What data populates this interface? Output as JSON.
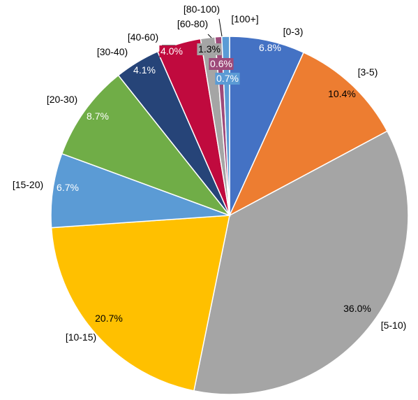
{
  "chart_data": {
    "type": "pie",
    "title": "",
    "legend": "none",
    "categories": [
      "[0-3)",
      "[3-5)",
      "[5-10)",
      "[10-15)",
      "[15-20)",
      "[20-30)",
      "[30-40)",
      "[40-60)",
      "[60-80)",
      "[80-100)",
      "[100+]"
    ],
    "values": [
      6.8,
      10.4,
      36.0,
      20.7,
      6.7,
      8.7,
      4.1,
      4.0,
      1.3,
      0.6,
      0.7
    ],
    "value_labels": [
      "6.8%",
      "10.4%",
      "36.0%",
      "20.7%",
      "6.7%",
      "8.7%",
      "4.1%",
      "4.0%",
      "1.3%",
      "0.6%",
      "0.7%"
    ],
    "colors": [
      "#4472C4",
      "#ED7D31",
      "#A5A5A5",
      "#FFC000",
      "#5B9BD5",
      "#70AD47",
      "#264478",
      "#C00A3E",
      "#A5A5A5",
      "#9E4A7A",
      "#5B9BD5"
    ],
    "label_colors": [
      "#ffffff",
      "#000000",
      "#000000",
      "#000000",
      "#ffffff",
      "#ffffff",
      "#ffffff",
      "#ffffff",
      "#000000",
      "#ffffff",
      "#ffffff"
    ]
  }
}
